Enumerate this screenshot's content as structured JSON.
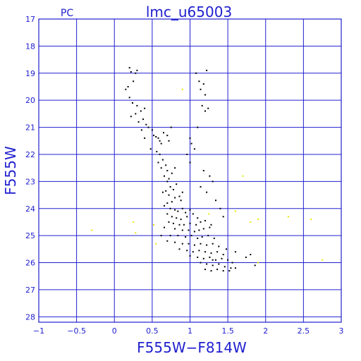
{
  "chart_data": {
    "type": "scatter",
    "title": "lmc_u65003",
    "corner_label": "PC",
    "xlabel": "F555W−F814W",
    "ylabel": "F555W",
    "xlim": [
      -1,
      3
    ],
    "ylim": [
      17,
      28.2
    ],
    "y_inverted": true,
    "xticks": [
      "−1",
      "−0.5",
      "0",
      "0.5",
      "1",
      "1.5",
      "2",
      "2.5",
      "3"
    ],
    "xtick_values": [
      -1,
      -0.5,
      0,
      0.5,
      1,
      1.5,
      2,
      2.5,
      3
    ],
    "yticks": [
      "17",
      "18",
      "19",
      "20",
      "21",
      "22",
      "23",
      "24",
      "25",
      "26",
      "27",
      "28"
    ],
    "ytick_values": [
      17,
      18,
      19,
      20,
      21,
      22,
      23,
      24,
      25,
      26,
      27,
      28
    ],
    "grid": true,
    "colors": {
      "axes": "#2020d0",
      "stars": "#000000",
      "highlight_stars": "#e6e600"
    },
    "series": [
      {
        "color": "#000000",
        "points": [
          [
            0.2,
            18.8
          ],
          [
            0.22,
            18.95
          ],
          [
            0.28,
            19.0
          ],
          [
            0.3,
            18.9
          ],
          [
            0.25,
            19.3
          ],
          [
            0.15,
            19.6
          ],
          [
            0.18,
            19.5
          ],
          [
            0.2,
            19.9
          ],
          [
            0.24,
            20.1
          ],
          [
            0.3,
            20.2
          ],
          [
            0.28,
            20.5
          ],
          [
            0.35,
            20.4
          ],
          [
            0.4,
            20.3
          ],
          [
            0.22,
            20.6
          ],
          [
            0.32,
            20.8
          ],
          [
            0.38,
            20.7
          ],
          [
            0.42,
            20.9
          ],
          [
            0.45,
            21.0
          ],
          [
            0.36,
            21.1
          ],
          [
            0.5,
            21.1
          ],
          [
            0.52,
            21.3
          ],
          [
            0.55,
            21.35
          ],
          [
            0.58,
            21.4
          ],
          [
            0.4,
            21.4
          ],
          [
            0.6,
            21.5
          ],
          [
            0.62,
            21.6
          ],
          [
            0.65,
            21.2
          ],
          [
            0.7,
            21.3
          ],
          [
            0.75,
            21.0
          ],
          [
            0.72,
            21.5
          ],
          [
            0.48,
            21.8
          ],
          [
            0.56,
            21.9
          ],
          [
            0.6,
            22.0
          ],
          [
            0.64,
            22.2
          ],
          [
            0.68,
            22.4
          ],
          [
            0.7,
            22.6
          ],
          [
            0.66,
            22.8
          ],
          [
            0.72,
            22.9
          ],
          [
            0.76,
            22.7
          ],
          [
            0.8,
            22.5
          ],
          [
            0.62,
            22.5
          ],
          [
            0.58,
            22.3
          ],
          [
            0.7,
            23.0
          ],
          [
            0.74,
            23.2
          ],
          [
            0.78,
            23.3
          ],
          [
            0.82,
            23.1
          ],
          [
            0.68,
            23.35
          ],
          [
            0.64,
            23.4
          ],
          [
            0.72,
            23.5
          ],
          [
            0.8,
            23.6
          ],
          [
            0.86,
            23.55
          ],
          [
            0.9,
            23.4
          ],
          [
            0.88,
            23.7
          ],
          [
            0.76,
            23.75
          ],
          [
            0.7,
            23.8
          ],
          [
            0.66,
            23.9
          ],
          [
            0.74,
            24.0
          ],
          [
            0.8,
            24.05
          ],
          [
            0.84,
            24.1
          ],
          [
            0.9,
            24.0
          ],
          [
            0.94,
            24.15
          ],
          [
            1.0,
            24.05
          ],
          [
            0.7,
            24.2
          ],
          [
            0.76,
            24.3
          ],
          [
            0.82,
            24.35
          ],
          [
            0.88,
            24.4
          ],
          [
            0.96,
            24.3
          ],
          [
            1.04,
            24.2
          ],
          [
            1.1,
            24.35
          ],
          [
            0.72,
            24.5
          ],
          [
            0.78,
            24.55
          ],
          [
            0.86,
            24.6
          ],
          [
            0.92,
            24.6
          ],
          [
            1.0,
            24.55
          ],
          [
            1.08,
            24.6
          ],
          [
            1.14,
            24.5
          ],
          [
            1.2,
            24.45
          ],
          [
            0.66,
            24.7
          ],
          [
            0.8,
            24.75
          ],
          [
            0.9,
            24.8
          ],
          [
            0.98,
            24.8
          ],
          [
            1.06,
            24.85
          ],
          [
            1.12,
            24.8
          ],
          [
            1.18,
            24.75
          ],
          [
            1.26,
            24.7
          ],
          [
            0.74,
            25.0
          ],
          [
            0.84,
            25.0
          ],
          [
            0.94,
            25.05
          ],
          [
            1.02,
            25.0
          ],
          [
            1.1,
            25.1
          ],
          [
            1.16,
            25.05
          ],
          [
            1.24,
            25.0
          ],
          [
            1.32,
            25.1
          ],
          [
            0.62,
            25.0
          ],
          [
            0.7,
            25.2
          ],
          [
            0.8,
            25.25
          ],
          [
            0.9,
            25.3
          ],
          [
            0.98,
            25.3
          ],
          [
            1.06,
            25.35
          ],
          [
            1.14,
            25.3
          ],
          [
            1.22,
            25.35
          ],
          [
            1.3,
            25.3
          ],
          [
            1.38,
            25.4
          ],
          [
            0.86,
            25.5
          ],
          [
            0.96,
            25.55
          ],
          [
            1.04,
            25.6
          ],
          [
            1.12,
            25.55
          ],
          [
            1.2,
            25.6
          ],
          [
            1.28,
            25.65
          ],
          [
            1.36,
            25.6
          ],
          [
            1.44,
            25.7
          ],
          [
            1.0,
            25.75
          ],
          [
            1.1,
            25.8
          ],
          [
            1.18,
            25.85
          ],
          [
            1.26,
            25.8
          ],
          [
            1.34,
            25.9
          ],
          [
            1.42,
            25.85
          ],
          [
            1.5,
            25.9
          ],
          [
            1.56,
            26.0
          ],
          [
            1.14,
            26.0
          ],
          [
            1.22,
            26.05
          ],
          [
            1.3,
            26.1
          ],
          [
            1.38,
            26.05
          ],
          [
            1.46,
            26.15
          ],
          [
            1.54,
            26.2
          ],
          [
            1.6,
            26.2
          ],
          [
            1.2,
            26.25
          ],
          [
            1.28,
            26.3
          ],
          [
            1.36,
            26.25
          ],
          [
            1.44,
            26.3
          ],
          [
            1.52,
            26.3
          ],
          [
            1.08,
            19.0
          ],
          [
            1.12,
            19.3
          ],
          [
            1.18,
            19.4
          ],
          [
            1.14,
            19.6
          ],
          [
            1.2,
            19.8
          ],
          [
            1.22,
            18.9
          ],
          [
            1.16,
            20.2
          ],
          [
            1.2,
            20.4
          ],
          [
            1.24,
            20.3
          ],
          [
            1.1,
            21.0
          ],
          [
            1.0,
            21.4
          ],
          [
            1.02,
            21.6
          ],
          [
            1.06,
            21.8
          ],
          [
            0.96,
            22.0
          ],
          [
            1.0,
            22.3
          ],
          [
            1.18,
            22.6
          ],
          [
            1.26,
            22.8
          ],
          [
            1.3,
            23.0
          ],
          [
            1.14,
            23.2
          ],
          [
            1.22,
            23.4
          ],
          [
            1.34,
            23.7
          ],
          [
            1.4,
            24.0
          ],
          [
            1.44,
            24.3
          ],
          [
            1.28,
            24.6
          ],
          [
            1.74,
            25.8
          ],
          [
            1.8,
            25.7
          ],
          [
            1.86,
            26.1
          ],
          [
            1.6,
            25.6
          ],
          [
            1.48,
            25.5
          ],
          [
            1.3,
            25.9
          ]
        ]
      },
      {
        "color": "#e6e600",
        "points": [
          [
            -0.3,
            24.8
          ],
          [
            0.25,
            24.5
          ],
          [
            0.28,
            24.9
          ],
          [
            0.52,
            24.6
          ],
          [
            0.55,
            25.3
          ],
          [
            1.6,
            24.1
          ],
          [
            1.7,
            22.8
          ],
          [
            1.8,
            24.5
          ],
          [
            1.9,
            24.4
          ],
          [
            2.3,
            24.3
          ],
          [
            2.6,
            24.4
          ],
          [
            2.75,
            25.9
          ],
          [
            1.9,
            26.0
          ],
          [
            0.9,
            19.6
          ],
          [
            1.25,
            24.2
          ]
        ]
      }
    ]
  }
}
